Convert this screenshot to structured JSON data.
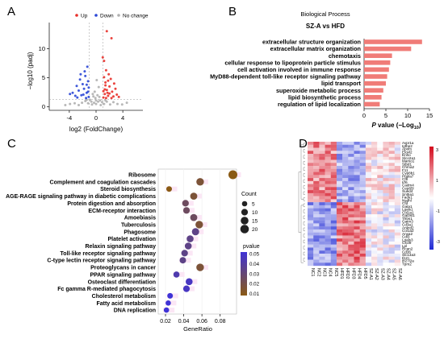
{
  "panel_letters": [
    "A",
    "B",
    "C",
    "D"
  ],
  "colors": {
    "up": "#e8302a",
    "down": "#2b47d6",
    "nochange": "#b0b0b0",
    "bar": "#f07c78",
    "bubble_high": "#3f33d6",
    "bubble_low": "#8a5a14",
    "heat_high": "#d40a1c",
    "heat_mid": "#ffffff",
    "heat_low": "#1f2ad4"
  },
  "chart_data": [
    {
      "panel": "A",
      "type": "scatter",
      "legend": {
        "placement": "top",
        "entries": [
          "Up",
          "Down",
          "No change"
        ]
      },
      "xlabel": "log2 (FoldChange)",
      "ylabel": "−log10 (padj)",
      "xticks": [
        "-4",
        "0",
        "4"
      ],
      "yticks": [
        "0",
        "5",
        "10"
      ],
      "xlim": [
        -7,
        7
      ],
      "ylim": [
        -0.6,
        14.5
      ],
      "thresholds": {
        "log2fc": [
          -1,
          1
        ],
        "neg_log10_padj": 1.3
      },
      "series": [
        {
          "name": "Up",
          "points": [
            [
              1.1,
              1.6
            ],
            [
              1.3,
              2.2
            ],
            [
              1.6,
              2.9
            ],
            [
              2.0,
              3.5
            ],
            [
              1.4,
              4.2
            ],
            [
              1.8,
              1.9
            ],
            [
              2.4,
              2.6
            ],
            [
              2.9,
              3.1
            ],
            [
              1.2,
              5.1
            ],
            [
              1.5,
              6.3
            ],
            [
              2.2,
              4.8
            ],
            [
              3.1,
              2.1
            ],
            [
              1.7,
              2.4
            ],
            [
              2.6,
              1.8
            ],
            [
              1.3,
              3.0
            ],
            [
              1.9,
              5.6
            ],
            [
              2.3,
              1.5
            ],
            [
              3.4,
              1.7
            ],
            [
              1.1,
              2.7
            ],
            [
              1.5,
              1.5
            ],
            [
              2.7,
              4.0
            ],
            [
              1.2,
              7.9
            ],
            [
              1.0,
              8.5
            ],
            [
              1.6,
              13.0
            ],
            [
              2.3,
              11.8
            ],
            [
              1.4,
              3.7
            ],
            [
              2.0,
              2.3
            ],
            [
              1.8,
              4.5
            ]
          ]
        },
        {
          "name": "Down",
          "points": [
            [
              -1.1,
              1.7
            ],
            [
              -1.4,
              2.4
            ],
            [
              -1.8,
              3.1
            ],
            [
              -2.2,
              2.0
            ],
            [
              -1.2,
              4.4
            ],
            [
              -2.6,
              2.8
            ],
            [
              -3.1,
              1.9
            ],
            [
              -1.6,
              5.3
            ],
            [
              -1.3,
              6.9
            ],
            [
              -2.0,
              3.9
            ],
            [
              -2.9,
              3.6
            ],
            [
              -1.5,
              1.5
            ],
            [
              -2.4,
              4.7
            ],
            [
              -3.5,
              2.4
            ],
            [
              -1.9,
              2.1
            ],
            [
              -1.1,
              3.3
            ],
            [
              -2.8,
              1.6
            ],
            [
              -1.7,
              6.1
            ],
            [
              -3.9,
              2.2
            ],
            [
              -1.4,
              3.8
            ],
            [
              -2.3,
              5.6
            ],
            [
              -1.2,
              2.6
            ]
          ]
        },
        {
          "name": "No change",
          "points": [
            [
              0.0,
              0.5
            ],
            [
              0.3,
              0.9
            ],
            [
              -0.3,
              0.7
            ],
            [
              0.6,
              1.1
            ],
            [
              -0.6,
              0.4
            ],
            [
              0.9,
              0.8
            ],
            [
              -0.9,
              1.2
            ],
            [
              1.2,
              0.5
            ],
            [
              -1.2,
              0.6
            ],
            [
              1.6,
              0.9
            ],
            [
              -1.6,
              1.0
            ],
            [
              2.1,
              0.4
            ],
            [
              -2.1,
              0.7
            ],
            [
              2.6,
              0.8
            ],
            [
              -2.6,
              0.3
            ],
            [
              3.2,
              0.5
            ],
            [
              -3.2,
              0.6
            ],
            [
              3.9,
              0.4
            ],
            [
              -3.9,
              0.5
            ],
            [
              4.6,
              0.7
            ],
            [
              -4.6,
              0.3
            ],
            [
              0.2,
              2.0
            ],
            [
              -0.2,
              2.6
            ],
            [
              0.4,
              3.4
            ],
            [
              -0.4,
              1.8
            ],
            [
              0.1,
              4.6
            ],
            [
              -0.1,
              1.5
            ],
            [
              0.5,
              1.7
            ],
            [
              -0.5,
              2.2
            ],
            [
              0.7,
              0.3
            ],
            [
              -0.7,
              0.9
            ],
            [
              1.4,
              1.1
            ],
            [
              -1.4,
              1.2
            ],
            [
              0.0,
              1.1
            ]
          ]
        }
      ]
    },
    {
      "panel": "B",
      "type": "bar",
      "orientation": "horizontal",
      "title": "Biological Process",
      "subtitle": "SZ-A vs HFD",
      "xlabel": "P value (−Log10)",
      "xticks": [
        "0",
        "5",
        "10",
        "15"
      ],
      "xlim": [
        0,
        15
      ],
      "categories": [
        "extracellular structure organization",
        "extracellular matrix organization",
        "chemotaxis",
        "cellular response to lipoprotein particle stimulus",
        "cell activation involved in immune response",
        "MyD88-dependent toll-like receptor signaling pathway",
        "lipid transport",
        "superoxide metabolic process",
        "lipid biosynthetic process",
        "regulation of lipid localization"
      ],
      "values": [
        13.3,
        10.8,
        6.4,
        6.0,
        5.7,
        5.3,
        5.0,
        4.4,
        4.0,
        3.6
      ]
    },
    {
      "panel": "C",
      "type": "scatter",
      "subtype": "bubble",
      "xlabel": "GeneRatio",
      "xticks": [
        "0.02",
        "0.04",
        "0.06",
        "0.08"
      ],
      "xlim": [
        0.012,
        0.098
      ],
      "size_legend": {
        "title": "Count",
        "values": [
          5,
          10,
          15,
          20
        ]
      },
      "color_legend": {
        "title": "pvalue",
        "ticks": [
          "0.05",
          "0.04",
          "0.03",
          "0.02",
          "0.01"
        ]
      },
      "categories": [
        "Ribosome",
        "Complement and coagulation cascades",
        "Steroid biosynthesis",
        "AGE-RAGE signaling pathway in diabetic complications",
        "Protein digestion and absorption",
        "ECM-receptor interaction",
        "Amoebiasis",
        "Tuberculosis",
        "Phagosome",
        "Platelet activation",
        "Relaxin signaling pathway",
        "Toll-like receptor signaling pathway",
        "C-type lectin receptor signaling pathway",
        "Proteoglycans in cancer",
        "PPAR signaling pathway",
        "Osteoclast differentiation",
        "Fc gamma R-mediated phagocytosis",
        "Cholesterol metabolism",
        "Fatty acid metabolism",
        "DNA replication"
      ],
      "gene_ratio": [
        0.094,
        0.058,
        0.024,
        0.051,
        0.042,
        0.043,
        0.051,
        0.057,
        0.053,
        0.047,
        0.045,
        0.041,
        0.039,
        0.058,
        0.032,
        0.046,
        0.043,
        0.025,
        0.023,
        0.021
      ],
      "count": [
        22,
        14,
        6,
        12,
        10,
        10,
        12,
        14,
        13,
        11,
        11,
        10,
        9,
        14,
        8,
        11,
        10,
        6,
        5,
        5
      ],
      "pvalue": [
        0.001,
        0.01,
        0.001,
        0.01,
        0.02,
        0.02,
        0.02,
        0.01,
        0.03,
        0.03,
        0.03,
        0.03,
        0.03,
        0.01,
        0.04,
        0.045,
        0.045,
        0.05,
        0.05,
        0.05
      ]
    },
    {
      "panel": "D",
      "type": "heatmap",
      "columns": [
        "NC1",
        "NC2",
        "NC3",
        "NC4",
        "NC5",
        "HFD1",
        "HFD2",
        "HFD3",
        "HFD4",
        "HFD5",
        "SZ-A1",
        "SZ-A2",
        "SZ-A3",
        "SZ-A4",
        "SZ-A5",
        "SZ-A6"
      ],
      "rows": [
        "Avpr1a",
        "Igfbp2",
        "Apom",
        "Elovl2",
        "Enho",
        "Slco2a1",
        "Mamo1",
        "Stbd1",
        "Chrna2",
        "F11",
        "Cyp8b1",
        "Pnpla7",
        "Cfb",
        "Irf6",
        "Cadm4",
        "Cep85l",
        "Sued4",
        "Snt5a1",
        "Fads1",
        "Nsdhl",
        "Cfd",
        "Gata1",
        "Lgals1",
        "Col1a1",
        "Gal3st1",
        "Thbs1",
        "Gatm3",
        "Cd3a1",
        "Ankrd2",
        "Col1a2",
        "Anxa2",
        "Cdl3",
        "Lgals3",
        "Cxcl9",
        "Lpl",
        "Rcan2",
        "Cd36",
        "Slc13a3",
        "Il1rn",
        "Ifi27l2a",
        "Tpm2"
      ],
      "colorbar_ticks": [
        "3",
        "1",
        "-1",
        "-3"
      ],
      "clim": [
        -3,
        3
      ]
    }
  ]
}
